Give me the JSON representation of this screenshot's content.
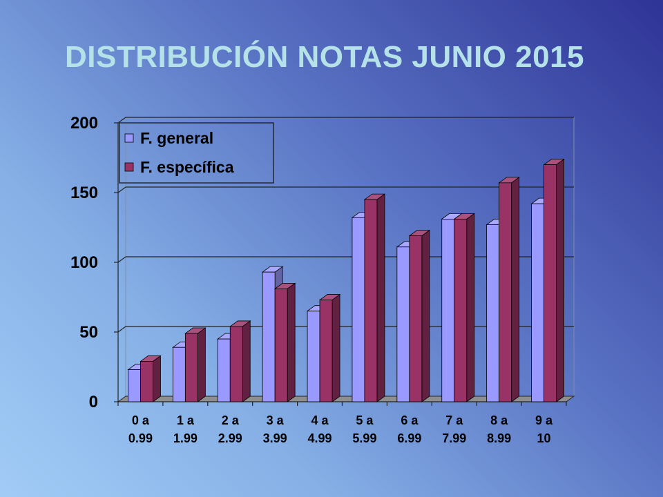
{
  "slide": {
    "title": "DISTRIBUCIÓN NOTAS JUNIO 2015"
  },
  "chart_data": {
    "type": "bar",
    "title": "DISTRIBUCIÓN NOTAS JUNIO 2015",
    "xlabel": "",
    "ylabel": "",
    "ylim": [
      0,
      200
    ],
    "yticks": [
      0,
      50,
      100,
      150,
      200
    ],
    "grid": true,
    "legend_position": "top-left",
    "three_d": true,
    "categories": [
      [
        "0 a",
        "0.99"
      ],
      [
        "1 a",
        "1.99"
      ],
      [
        "2 a",
        "2.99"
      ],
      [
        "3 a",
        "3.99"
      ],
      [
        "4 a",
        "4.99"
      ],
      [
        "5 a",
        "5.99"
      ],
      [
        "6 a",
        "6.99"
      ],
      [
        "7 a",
        "7.99"
      ],
      [
        "8 a",
        "8.99"
      ],
      [
        "9 a",
        "10"
      ]
    ],
    "series": [
      {
        "name": "F. general",
        "color": "#9999ff",
        "values": [
          23,
          39,
          45,
          93,
          65,
          132,
          111,
          131,
          127,
          142
        ]
      },
      {
        "name": "F. específica",
        "color": "#993366",
        "values": [
          29,
          49,
          54,
          81,
          73,
          145,
          119,
          131,
          157,
          170
        ]
      }
    ]
  }
}
